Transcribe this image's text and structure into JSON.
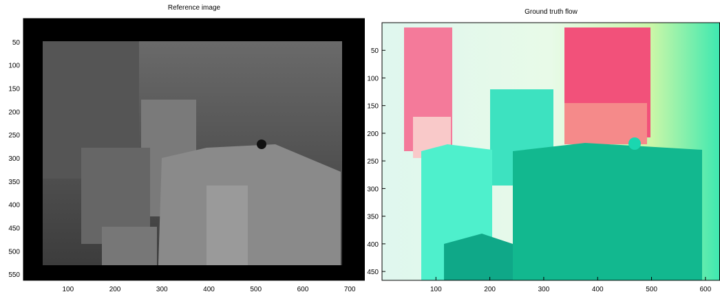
{
  "chart_data": [
    {
      "type": "image",
      "title": "Reference image",
      "xlim": [
        5,
        732
      ],
      "ylim": [
        0,
        563
      ],
      "xticks": [
        100,
        200,
        300,
        400,
        500,
        600,
        700
      ],
      "yticks": [
        50,
        100,
        150,
        200,
        250,
        300,
        350,
        400,
        450,
        500,
        550
      ]
    },
    {
      "type": "image",
      "title": "Ground truth flow",
      "xlim": [
        0,
        627
      ],
      "ylim": [
        0,
        466
      ],
      "xticks": [
        100,
        200,
        300,
        400,
        500,
        600
      ],
      "yticks": [
        50,
        100,
        150,
        200,
        250,
        300,
        350,
        400,
        450
      ]
    }
  ]
}
